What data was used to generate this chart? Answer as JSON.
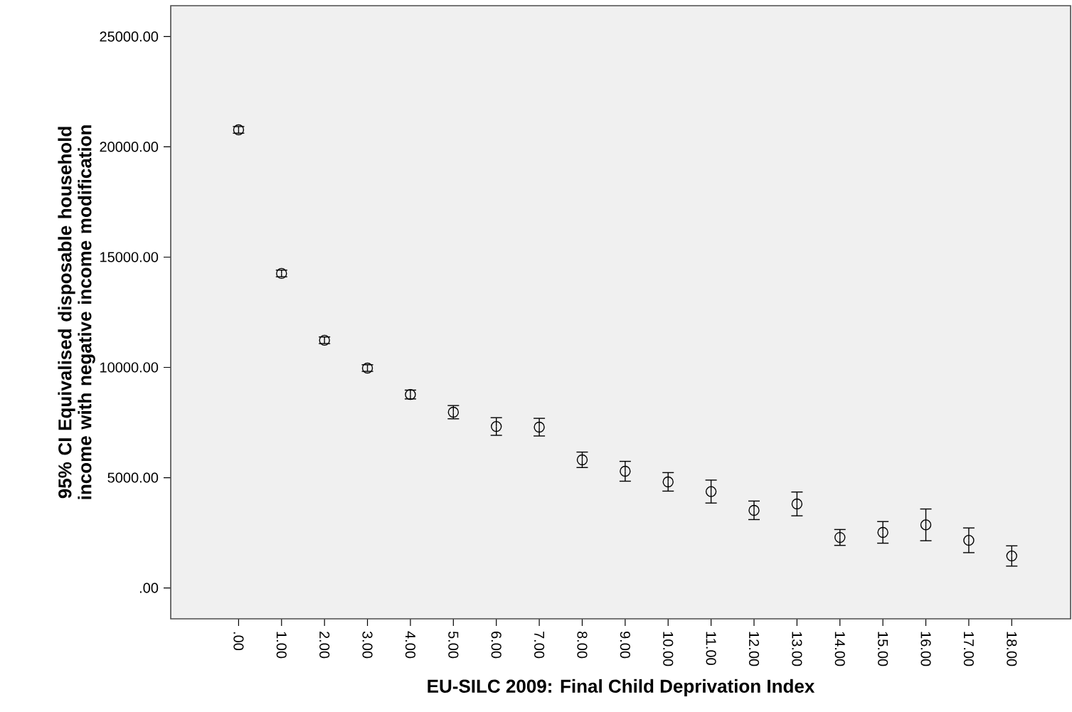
{
  "chart_data": {
    "type": "scatter",
    "xlabel": "EU-SILC 2009: Final Child Deprivation Index",
    "ylabel": "95% CI Equivalised disposable household income with negative income modification",
    "categories": [
      ".00",
      "1.00",
      "2.00",
      "3.00",
      "4.00",
      "5.00",
      "6.00",
      "7.00",
      "8.00",
      "9.00",
      "10.00",
      "11.00",
      "12.00",
      "13.00",
      "14.00",
      "15.00",
      "16.00",
      "17.00",
      "18.00"
    ],
    "values": [
      20770,
      14260,
      11230,
      9970,
      8770,
      7970,
      7320,
      7290,
      5810,
      5290,
      4810,
      4370,
      3520,
      3810,
      2290,
      2520,
      2860,
      2160,
      1450
    ],
    "errors": [
      150,
      150,
      150,
      150,
      200,
      300,
      400,
      400,
      350,
      450,
      420,
      520,
      420,
      540,
      360,
      490,
      720,
      560,
      460
    ],
    "color": "#000000",
    "marker": "circle",
    "ylim": [
      -1400,
      26400
    ],
    "yticks": [
      {
        "value": 0,
        "label": ".00"
      },
      {
        "value": 5000,
        "label": "5000.00"
      },
      {
        "value": 10000,
        "label": "10000.00"
      },
      {
        "value": 15000,
        "label": "15000.00"
      },
      {
        "value": 20000,
        "label": "20000.00"
      },
      {
        "value": 25000,
        "label": "25000.00"
      }
    ]
  }
}
